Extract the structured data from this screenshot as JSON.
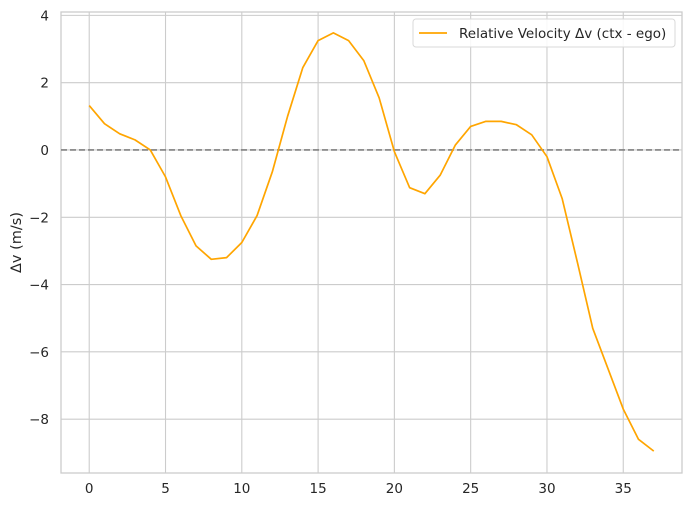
{
  "chart_data": {
    "type": "line",
    "title": "",
    "xlabel": "",
    "ylabel": "Δv (m/s)",
    "xlim": [
      -1.85,
      38.85
    ],
    "ylim": [
      -9.6,
      4.1
    ],
    "xticks": [
      0,
      5,
      10,
      15,
      20,
      25,
      30,
      35
    ],
    "yticks": [
      -8,
      -6,
      -4,
      -2,
      0,
      2,
      4
    ],
    "grid": true,
    "legend_position": "top-right",
    "reference_line": {
      "y": 0,
      "style": "dashed",
      "color": "#808080"
    },
    "series": [
      {
        "name": "Relative Velocity Δv (ctx - ego)",
        "color": "#ffa500",
        "x": [
          0,
          1,
          2,
          3,
          4,
          5,
          6,
          7,
          8,
          9,
          10,
          11,
          12,
          13,
          14,
          15,
          16,
          17,
          18,
          19,
          20,
          21,
          22,
          23,
          24,
          25,
          26,
          27,
          28,
          29,
          30,
          31,
          32,
          33,
          34,
          35,
          36,
          37
        ],
        "y": [
          1.32,
          0.78,
          0.48,
          0.3,
          0.0,
          -0.8,
          -1.95,
          -2.85,
          -3.25,
          -3.2,
          -2.75,
          -1.95,
          -0.65,
          1.0,
          2.45,
          3.25,
          3.48,
          3.25,
          2.65,
          1.55,
          -0.05,
          -1.12,
          -1.3,
          -0.75,
          0.15,
          0.7,
          0.85,
          0.85,
          0.75,
          0.45,
          -0.2,
          -1.45,
          -3.35,
          -5.3,
          -6.5,
          -7.7,
          -8.6,
          -8.95
        ]
      }
    ]
  }
}
